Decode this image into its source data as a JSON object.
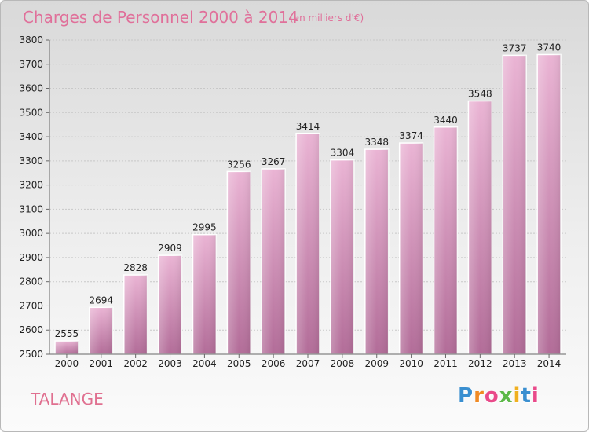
{
  "chart_data": {
    "type": "bar",
    "title": "Charges de Personnel 2000 à 2014",
    "subtitle": "(en milliers d'€)",
    "categories": [
      "2000",
      "2001",
      "2002",
      "2003",
      "2004",
      "2005",
      "2006",
      "2007",
      "2008",
      "2009",
      "2010",
      "2011",
      "2012",
      "2013",
      "2014"
    ],
    "values": [
      2555,
      2694,
      2828,
      2909,
      2995,
      3256,
      3267,
      3414,
      3304,
      3348,
      3374,
      3440,
      3548,
      3737,
      3740
    ],
    "ylim": [
      2500,
      3800
    ],
    "yticks": [
      2500,
      2600,
      2700,
      2800,
      2900,
      3000,
      3100,
      3200,
      3300,
      3400,
      3500,
      3600,
      3700,
      3800
    ],
    "grid": true,
    "bar_color": "#d890b8",
    "xlabel": "",
    "ylabel": ""
  },
  "location": "TALANGE",
  "logo_text": "Proxiti",
  "colors": {
    "title": "#e0709a",
    "bar_top": "#e8acd0",
    "bar_bottom": "#b8709c",
    "grid": "#c8c8c8"
  }
}
